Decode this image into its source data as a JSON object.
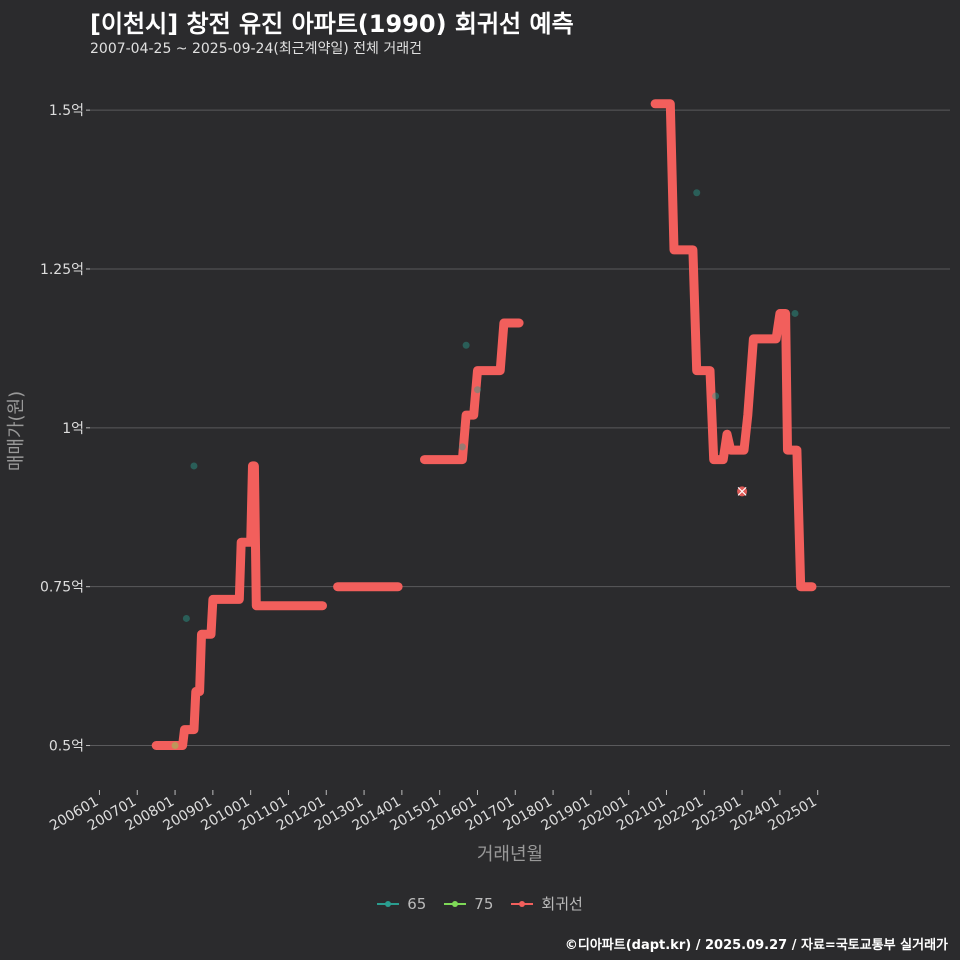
{
  "title": "[이천시] 창전 유진 아파트(1990) 회귀선 예측",
  "subtitle": "2007-04-25 ~ 2025-09-24(최근계약일) 전체 거래건",
  "caption": "©디아파트(dapt.kr) / 2025.09.27 / 자료=국토교통부 실거래가",
  "colors": {
    "background": "#2b2b2d",
    "grid": "#5a5a5c",
    "series_65": "#2a9d8f",
    "series_75": "#7ed957",
    "regression": "#f25f5c",
    "point_fill": "#2f5f4f"
  },
  "chart_data": {
    "type": "line",
    "xlabel": "거래년월",
    "ylabel": "매매가(원)",
    "xlim": [
      2005.75,
      2028.5
    ],
    "ylim": [
      0.43,
      1.56
    ],
    "x_ticks": [
      {
        "value": 2006.0,
        "label": "200601"
      },
      {
        "value": 2007.0,
        "label": "200701"
      },
      {
        "value": 2008.0,
        "label": "200801"
      },
      {
        "value": 2009.0,
        "label": "200901"
      },
      {
        "value": 2010.0,
        "label": "201001"
      },
      {
        "value": 2011.0,
        "label": "201101"
      },
      {
        "value": 2012.0,
        "label": "201201"
      },
      {
        "value": 2013.0,
        "label": "201301"
      },
      {
        "value": 2014.0,
        "label": "201401"
      },
      {
        "value": 2015.0,
        "label": "201501"
      },
      {
        "value": 2016.0,
        "label": "201601"
      },
      {
        "value": 2017.0,
        "label": "201701"
      },
      {
        "value": 2018.0,
        "label": "201801"
      },
      {
        "value": 2019.0,
        "label": "201901"
      },
      {
        "value": 2020.0,
        "label": "202001"
      },
      {
        "value": 2021.0,
        "label": "202101"
      },
      {
        "value": 2022.0,
        "label": "202201"
      },
      {
        "value": 2023.0,
        "label": "202301"
      },
      {
        "value": 2024.0,
        "label": "202401"
      },
      {
        "value": 2025.0,
        "label": "202501"
      }
    ],
    "y_ticks": [
      {
        "value": 0.5,
        "label": "0.5억"
      },
      {
        "value": 0.75,
        "label": "0.75억"
      },
      {
        "value": 1.0,
        "label": "1억"
      },
      {
        "value": 1.25,
        "label": "1.25억"
      },
      {
        "value": 1.5,
        "label": "1.5억"
      }
    ],
    "legend": [
      {
        "name": "65",
        "color": "#2a9d8f"
      },
      {
        "name": "75",
        "color": "#7ed957"
      },
      {
        "name": "회귀선",
        "color": "#f25f5c"
      }
    ],
    "points": [
      {
        "series": "75",
        "x": 2008.0,
        "y": 0.5
      },
      {
        "series": "65",
        "x": 2008.3,
        "y": 0.7
      },
      {
        "series": "65",
        "x": 2008.5,
        "y": 0.94
      },
      {
        "series": "65",
        "x": 2015.6,
        "y": 0.97
      },
      {
        "series": "65",
        "x": 2015.7,
        "y": 1.13
      },
      {
        "series": "65",
        "x": 2016.0,
        "y": 1.06
      },
      {
        "series": "65",
        "x": 2021.8,
        "y": 1.37
      },
      {
        "series": "65",
        "x": 2022.3,
        "y": 1.05
      },
      {
        "series": "65",
        "x": 2023.0,
        "y": 0.9,
        "highlight": true
      },
      {
        "series": "65",
        "x": 2024.4,
        "y": 1.18
      }
    ],
    "regression_segments": [
      [
        [
          2007.5,
          0.5
        ],
        [
          2008.2,
          0.5
        ],
        [
          2008.25,
          0.525
        ],
        [
          2008.5,
          0.525
        ],
        [
          2008.55,
          0.585
        ],
        [
          2008.65,
          0.585
        ],
        [
          2008.7,
          0.675
        ],
        [
          2008.95,
          0.675
        ],
        [
          2009.0,
          0.73
        ],
        [
          2009.7,
          0.73
        ],
        [
          2009.75,
          0.82
        ],
        [
          2010.0,
          0.82
        ],
        [
          2010.05,
          0.94
        ],
        [
          2010.1,
          0.94
        ],
        [
          2010.15,
          0.72
        ],
        [
          2011.9,
          0.72
        ]
      ],
      [
        [
          2012.3,
          0.75
        ],
        [
          2013.9,
          0.75
        ]
      ],
      [
        [
          2014.6,
          0.95
        ],
        [
          2015.6,
          0.95
        ],
        [
          2015.7,
          1.02
        ],
        [
          2015.9,
          1.02
        ],
        [
          2016.0,
          1.09
        ],
        [
          2016.6,
          1.09
        ],
        [
          2016.7,
          1.165
        ],
        [
          2017.1,
          1.165
        ]
      ],
      [
        [
          2020.7,
          1.51
        ],
        [
          2021.1,
          1.51
        ],
        [
          2021.2,
          1.28
        ],
        [
          2021.7,
          1.28
        ],
        [
          2021.8,
          1.09
        ],
        [
          2022.15,
          1.09
        ],
        [
          2022.25,
          0.95
        ],
        [
          2022.5,
          0.95
        ],
        [
          2022.6,
          0.99
        ],
        [
          2022.7,
          0.965
        ],
        [
          2023.05,
          0.965
        ],
        [
          2023.15,
          1.02
        ],
        [
          2023.3,
          1.14
        ],
        [
          2023.9,
          1.14
        ],
        [
          2024.0,
          1.18
        ],
        [
          2024.15,
          1.18
        ],
        [
          2024.2,
          0.965
        ],
        [
          2024.45,
          0.965
        ],
        [
          2024.55,
          0.75
        ],
        [
          2024.85,
          0.75
        ]
      ]
    ]
  }
}
